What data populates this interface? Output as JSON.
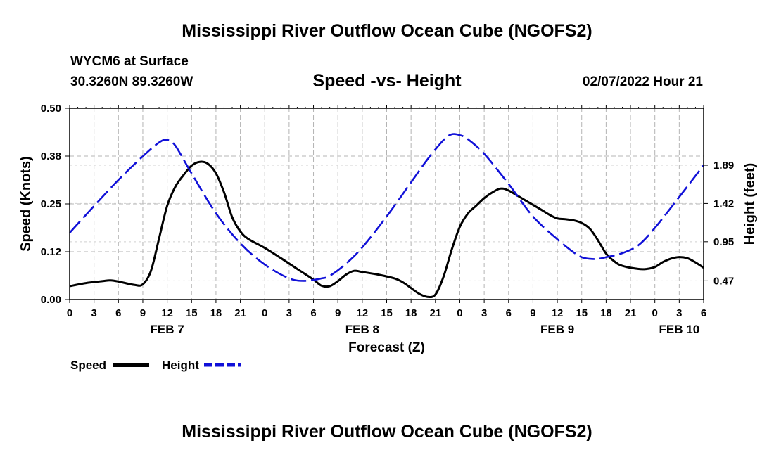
{
  "header": {
    "main_title": "Mississippi River Outflow Ocean Cube (NGOFS2)",
    "station": "WYCM6 at Surface",
    "coords": "30.3260N  89.3260W",
    "subtitle": "Speed -vs- Height",
    "timestamp": "02/07/2022 Hour 21"
  },
  "footer": {
    "title": "Mississippi River Outflow Ocean Cube (NGOFS2)"
  },
  "chart_data": {
    "type": "line",
    "title": "Speed -vs- Height",
    "xlabel": "Forecast (Z)",
    "ylabel": "Speed (Knots)",
    "y2label": "Height (feet)",
    "x_hours_range": [
      0,
      78
    ],
    "x_tick_step_hours": 3,
    "x_tick_labels": [
      "0",
      "3",
      "6",
      "9",
      "12",
      "15",
      "18",
      "21",
      "0",
      "3",
      "6",
      "9",
      "12",
      "15",
      "18",
      "21",
      "0",
      "3",
      "6",
      "9",
      "12",
      "15",
      "18",
      "21",
      "0",
      "3",
      "6"
    ],
    "date_labels": [
      {
        "hour": 12,
        "label": "FEB 7"
      },
      {
        "hour": 36,
        "label": "FEB 8"
      },
      {
        "hour": 60,
        "label": "FEB 9"
      },
      {
        "hour": 75,
        "label": "FEB 10"
      }
    ],
    "ylim": [
      0,
      0.5
    ],
    "y_ticks": [
      {
        "value": 0.0,
        "label": "0.00"
      },
      {
        "value": 0.125,
        "label": "0.12"
      },
      {
        "value": 0.25,
        "label": "0.25"
      },
      {
        "value": 0.375,
        "label": "0.38"
      },
      {
        "value": 0.5,
        "label": "0.50"
      }
    ],
    "y2lim": [
      0.24,
      2.59
    ],
    "y2_ticks": [
      {
        "value": 0.47,
        "label": "0.47"
      },
      {
        "value": 0.95,
        "label": "0.95"
      },
      {
        "value": 1.42,
        "label": "1.42"
      },
      {
        "value": 1.89,
        "label": "1.89"
      }
    ],
    "grid": true,
    "legend": "bottom-left",
    "series": [
      {
        "name": "Speed",
        "axis": "left",
        "color": "#000000",
        "style": "solid",
        "points": [
          [
            0,
            0.035
          ],
          [
            2,
            0.043
          ],
          [
            4,
            0.048
          ],
          [
            5,
            0.05
          ],
          [
            6,
            0.047
          ],
          [
            8,
            0.038
          ],
          [
            9,
            0.04
          ],
          [
            10,
            0.075
          ],
          [
            11,
            0.16
          ],
          [
            12,
            0.245
          ],
          [
            13,
            0.295
          ],
          [
            14,
            0.325
          ],
          [
            15,
            0.35
          ],
          [
            16,
            0.36
          ],
          [
            17,
            0.355
          ],
          [
            18,
            0.33
          ],
          [
            19,
            0.28
          ],
          [
            20,
            0.215
          ],
          [
            21,
            0.178
          ],
          [
            22,
            0.158
          ],
          [
            24,
            0.135
          ],
          [
            26,
            0.108
          ],
          [
            28,
            0.08
          ],
          [
            30,
            0.052
          ],
          [
            31,
            0.036
          ],
          [
            32,
            0.035
          ],
          [
            33,
            0.048
          ],
          [
            34,
            0.065
          ],
          [
            35,
            0.075
          ],
          [
            36,
            0.072
          ],
          [
            38,
            0.065
          ],
          [
            40,
            0.055
          ],
          [
            41,
            0.045
          ],
          [
            42,
            0.03
          ],
          [
            43,
            0.015
          ],
          [
            44,
            0.007
          ],
          [
            45,
            0.013
          ],
          [
            46,
            0.06
          ],
          [
            47,
            0.13
          ],
          [
            48,
            0.19
          ],
          [
            49,
            0.225
          ],
          [
            50,
            0.245
          ],
          [
            51,
            0.265
          ],
          [
            52,
            0.28
          ],
          [
            53,
            0.29
          ],
          [
            54,
            0.285
          ],
          [
            56,
            0.26
          ],
          [
            58,
            0.235
          ],
          [
            59,
            0.222
          ],
          [
            60,
            0.212
          ],
          [
            61,
            0.21
          ],
          [
            62,
            0.207
          ],
          [
            63,
            0.2
          ],
          [
            64,
            0.185
          ],
          [
            65,
            0.155
          ],
          [
            66,
            0.12
          ],
          [
            67,
            0.1
          ],
          [
            68,
            0.088
          ],
          [
            70,
            0.08
          ],
          [
            71,
            0.08
          ],
          [
            72,
            0.085
          ],
          [
            73,
            0.098
          ],
          [
            74,
            0.107
          ],
          [
            75,
            0.111
          ],
          [
            76,
            0.108
          ],
          [
            77,
            0.097
          ],
          [
            78,
            0.083
          ]
        ]
      },
      {
        "name": "Height",
        "axis": "right",
        "color": "#1010d8",
        "style": "dashed",
        "points": [
          [
            0,
            1.06
          ],
          [
            3,
            1.39
          ],
          [
            6,
            1.71
          ],
          [
            9,
            2.0
          ],
          [
            11,
            2.17
          ],
          [
            12,
            2.2
          ],
          [
            13,
            2.13
          ],
          [
            15,
            1.79
          ],
          [
            18,
            1.3
          ],
          [
            21,
            0.93
          ],
          [
            24,
            0.67
          ],
          [
            27,
            0.5
          ],
          [
            29,
            0.47
          ],
          [
            31,
            0.5
          ],
          [
            32,
            0.53
          ],
          [
            34,
            0.68
          ],
          [
            36,
            0.88
          ],
          [
            39,
            1.26
          ],
          [
            42,
            1.68
          ],
          [
            44,
            1.96
          ],
          [
            46,
            2.2
          ],
          [
            47,
            2.27
          ],
          [
            48,
            2.26
          ],
          [
            49,
            2.21
          ],
          [
            51,
            2.03
          ],
          [
            54,
            1.66
          ],
          [
            57,
            1.26
          ],
          [
            60,
            0.98
          ],
          [
            62,
            0.82
          ],
          [
            63,
            0.76
          ],
          [
            64,
            0.74
          ],
          [
            65,
            0.74
          ],
          [
            66,
            0.76
          ],
          [
            68,
            0.81
          ],
          [
            70,
            0.91
          ],
          [
            72,
            1.12
          ],
          [
            75,
            1.5
          ],
          [
            78,
            1.89
          ]
        ]
      }
    ]
  }
}
